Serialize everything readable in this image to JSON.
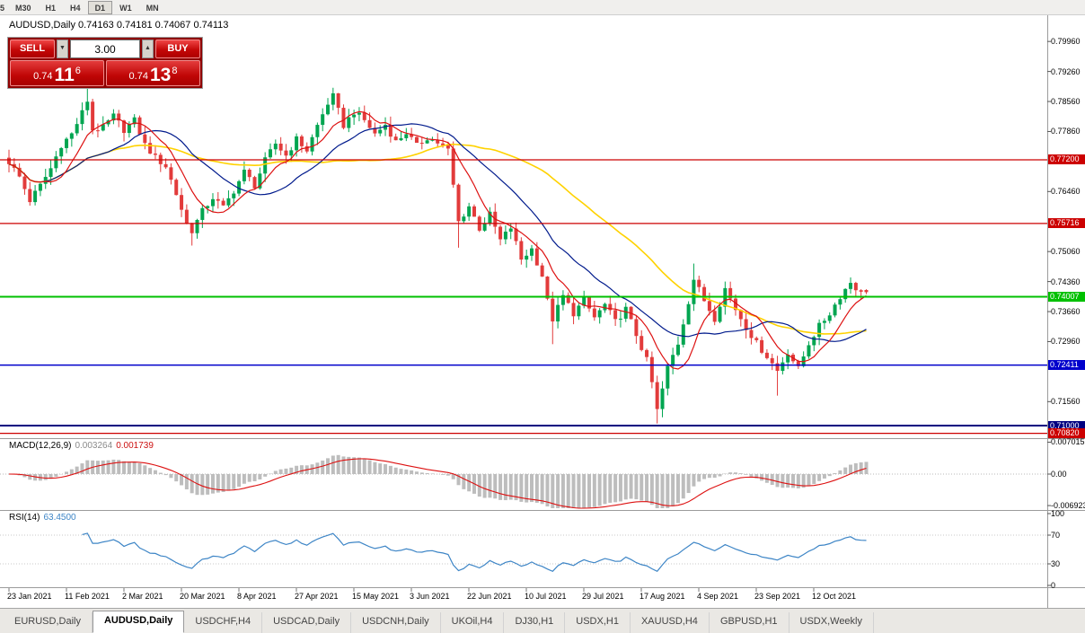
{
  "toolbar": {
    "timeframes": [
      "5",
      "M30",
      "H1",
      "H4",
      "D1",
      "W1",
      "MN"
    ],
    "active": "D1"
  },
  "chart_header": {
    "title": "AUDUSD,Daily 0.74163 0.74181 0.74067 0.74113"
  },
  "trade_panel": {
    "sell_label": "SELL",
    "buy_label": "BUY",
    "volume": "3.00",
    "sell_price": {
      "prefix": "0.74",
      "big": "11",
      "sup": "6"
    },
    "buy_price": {
      "prefix": "0.74",
      "big": "13",
      "sup": "8"
    }
  },
  "icons": {
    "spin_down": "▼",
    "spin_up": "▲"
  },
  "colors": {
    "up": "#00a550",
    "down": "#e23b3b",
    "ma_fast": "#dd1111",
    "ma_mid": "#001a8c",
    "ma_slow": "#ffd200",
    "macd_hist": "#bdbdbd",
    "macd_signal": "#dd1111",
    "rsi": "#3d85c6"
  },
  "main_chart": {
    "price_axis": {
      "min": 0.7075,
      "max": 0.8055,
      "ticks": [
        "0.79960",
        "0.79260",
        "0.78560",
        "0.77860",
        "0.76460",
        "0.75060",
        "0.74360",
        "0.73660",
        "0.72960",
        "0.71560"
      ]
    },
    "hlines": [
      {
        "price": 0.772,
        "label": "0.77200",
        "color": "#cc0000",
        "width": 1.2
      },
      {
        "price": 0.75716,
        "label": "0.75716",
        "color": "#cc0000",
        "width": 1.2
      },
      {
        "price": 0.74007,
        "label": "0.74007",
        "color": "#00c000",
        "width": 2
      },
      {
        "price": 0.72411,
        "label": "0.72411",
        "color": "#0000cc",
        "width": 1.5
      },
      {
        "price": 0.71,
        "label": "0.71000",
        "color": "#000080",
        "width": 2
      },
      {
        "price": 0.7082,
        "label": "0.70820",
        "color": "#cc0000",
        "width": 1.2
      }
    ]
  },
  "chart_data": {
    "type": "candlestick",
    "symbol": "AUDUSD",
    "timeframe": "Daily",
    "count": 165,
    "last_candle": {
      "open": 0.74163,
      "high": 0.74181,
      "low": 0.74067,
      "close": 0.74113
    },
    "anchors": [
      [
        0,
        0.7715
      ],
      [
        2,
        0.768
      ],
      [
        4,
        0.7625
      ],
      [
        6,
        0.766
      ],
      [
        8,
        0.77
      ],
      [
        10,
        0.7755
      ],
      [
        12,
        0.778
      ],
      [
        14,
        0.783
      ],
      [
        15,
        0.7858
      ],
      [
        16,
        0.779
      ],
      [
        18,
        0.7795
      ],
      [
        20,
        0.7822
      ],
      [
        22,
        0.779
      ],
      [
        24,
        0.7812
      ],
      [
        26,
        0.7755
      ],
      [
        28,
        0.7725
      ],
      [
        30,
        0.7705
      ],
      [
        32,
        0.764
      ],
      [
        34,
        0.757
      ],
      [
        35,
        0.7555
      ],
      [
        37,
        0.76
      ],
      [
        39,
        0.7632
      ],
      [
        41,
        0.7608
      ],
      [
        43,
        0.7648
      ],
      [
        45,
        0.7692
      ],
      [
        47,
        0.766
      ],
      [
        49,
        0.7718
      ],
      [
        51,
        0.7758
      ],
      [
        53,
        0.773
      ],
      [
        55,
        0.7768
      ],
      [
        57,
        0.7742
      ],
      [
        59,
        0.78
      ],
      [
        61,
        0.7852
      ],
      [
        62,
        0.7868
      ],
      [
        64,
        0.78
      ],
      [
        66,
        0.7832
      ],
      [
        68,
        0.7812
      ],
      [
        70,
        0.778
      ],
      [
        72,
        0.7802
      ],
      [
        74,
        0.7762
      ],
      [
        76,
        0.7784
      ],
      [
        78,
        0.7752
      ],
      [
        80,
        0.7772
      ],
      [
        82,
        0.776
      ],
      [
        84,
        0.7742
      ],
      [
        85,
        0.766
      ],
      [
        86,
        0.7575
      ],
      [
        88,
        0.7612
      ],
      [
        90,
        0.756
      ],
      [
        92,
        0.7592
      ],
      [
        94,
        0.7532
      ],
      [
        96,
        0.7562
      ],
      [
        98,
        0.7488
      ],
      [
        100,
        0.7512
      ],
      [
        102,
        0.745
      ],
      [
        103,
        0.739
      ],
      [
        104,
        0.7348
      ],
      [
        106,
        0.7402
      ],
      [
        108,
        0.7362
      ],
      [
        110,
        0.7392
      ],
      [
        112,
        0.7352
      ],
      [
        114,
        0.7382
      ],
      [
        116,
        0.7342
      ],
      [
        118,
        0.7372
      ],
      [
        120,
        0.7312
      ],
      [
        122,
        0.7252
      ],
      [
        123,
        0.72
      ],
      [
        124,
        0.7135
      ],
      [
        126,
        0.7235
      ],
      [
        128,
        0.7292
      ],
      [
        130,
        0.739
      ],
      [
        131,
        0.7442
      ],
      [
        133,
        0.7392
      ],
      [
        135,
        0.735
      ],
      [
        137,
        0.742
      ],
      [
        139,
        0.7372
      ],
      [
        141,
        0.733
      ],
      [
        143,
        0.7292
      ],
      [
        145,
        0.7262
      ],
      [
        147,
        0.7228
      ],
      [
        149,
        0.7272
      ],
      [
        151,
        0.7232
      ],
      [
        153,
        0.7292
      ],
      [
        155,
        0.7332
      ],
      [
        157,
        0.7362
      ],
      [
        159,
        0.7402
      ],
      [
        161,
        0.7435
      ],
      [
        163,
        0.7408
      ],
      [
        164,
        0.7411
      ]
    ],
    "special_wicks": {
      "15": {
        "high": 0.7892
      },
      "35": {
        "low": 0.752
      },
      "62": {
        "high": 0.7888
      },
      "86": {
        "low": 0.7515
      },
      "104": {
        "low": 0.729
      },
      "124": {
        "low": 0.7105
      },
      "131": {
        "high": 0.7478
      },
      "147": {
        "low": 0.717
      }
    },
    "moving_averages": [
      {
        "name": "fast",
        "period": 8,
        "color_key": "ma_fast",
        "width": 1.2
      },
      {
        "name": "mid",
        "period": 20,
        "color_key": "ma_mid",
        "width": 1.2
      },
      {
        "name": "slow",
        "period": 45,
        "color_key": "ma_slow",
        "width": 1.6
      }
    ]
  },
  "macd": {
    "label": "MACD(12,26,9)",
    "value_main": "0.003264",
    "value_signal": "0.001739",
    "params": {
      "fast": 12,
      "slow": 26,
      "signal": 9
    },
    "range": {
      "max": 0.0075,
      "min": -0.0075
    },
    "axis": [
      {
        "text": "0.007015",
        "v": 0.007015
      },
      {
        "text": "0.00",
        "v": 0
      },
      {
        "text": "-0.006923",
        "v": -0.006923
      }
    ]
  },
  "rsi": {
    "label": "RSI(14)",
    "value": "63.4500",
    "period": 14,
    "levels": [
      70,
      30
    ],
    "axis": [
      {
        "text": "100",
        "v": 100
      },
      {
        "text": "70",
        "v": 70
      },
      {
        "text": "30",
        "v": 30
      },
      {
        "text": "0",
        "v": 0
      }
    ]
  },
  "date_axis": {
    "labels": [
      "23 Jan 2021",
      "11 Feb 2021",
      "2 Mar 2021",
      "20 Mar 2021",
      "8 Apr 2021",
      "27 Apr 2021",
      "15 May 2021",
      "3 Jun 2021",
      "22 Jun 2021",
      "10 Jul 2021",
      "29 Jul 2021",
      "17 Aug 2021",
      "4 Sep 2021",
      "23 Sep 2021",
      "12 Oct 2021"
    ]
  },
  "tabs": {
    "items": [
      "EURUSD,Daily",
      "AUDUSD,Daily",
      "USDCHF,H4",
      "USDCAD,Daily",
      "USDCNH,Daily",
      "UKOil,H4",
      "DJ30,H1",
      "USDX,H1",
      "XAUUSD,H4",
      "GBPUSD,H1",
      "USDX,Weekly"
    ],
    "active_index": 1
  }
}
